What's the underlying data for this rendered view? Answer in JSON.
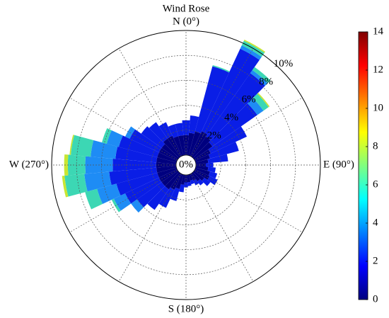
{
  "chart_data": {
    "type": "windrose",
    "title": "Wind Rose",
    "direction_labels": [
      "N (0°)",
      "E (90°)",
      "S (180°)",
      "W (270°)"
    ],
    "x": [
      0,
      10,
      20,
      30,
      40,
      50,
      60,
      70,
      80,
      90,
      100,
      110,
      120,
      130,
      140,
      150,
      160,
      170,
      180,
      190,
      200,
      210,
      220,
      230,
      240,
      250,
      260,
      270,
      280,
      290,
      300,
      310,
      320,
      330,
      340,
      350
    ],
    "series": [
      {
        "color": "#00007f",
        "values": [
          1.6,
          1.8,
          2.0,
          2.2,
          2.0,
          1.8,
          1.4,
          1.2,
          1.0,
          0.8,
          1.0,
          1.2,
          1.3,
          1.0,
          0.8,
          0.6,
          0.5,
          0.6,
          0.6,
          0.8,
          1.2,
          1.4,
          1.6,
          1.6,
          1.6,
          1.6,
          1.6,
          1.6,
          1.6,
          1.6,
          1.6,
          1.6,
          1.8,
          1.8,
          1.6,
          1.6
        ]
      },
      {
        "color": "#0a1ee6",
        "values": [
          1.2,
          1.4,
          5.4,
          7.3,
          6.2,
          4.4,
          3.2,
          2.4,
          1.6,
          0.6,
          0.6,
          0.6,
          0.7,
          0.6,
          0.4,
          0.4,
          0.3,
          0.3,
          0.4,
          0.6,
          1.0,
          1.6,
          2.0,
          2.4,
          3.0,
          3.4,
          3.8,
          3.5,
          3.3,
          3.2,
          2.6,
          2.0,
          1.6,
          1.2,
          1.0,
          1.0
        ]
      },
      {
        "color": "#1e8cf5",
        "values": [
          0,
          0,
          0,
          0.3,
          0.3,
          0.6,
          0,
          0,
          0,
          0,
          0,
          0,
          0,
          0,
          0,
          0,
          0,
          0,
          0,
          0,
          0,
          0,
          0,
          0.6,
          1.0,
          1.6,
          2.0,
          2.2,
          2.0,
          1.0,
          0.4,
          0,
          0,
          0,
          0,
          0
        ]
      },
      {
        "color": "#3cd7b4",
        "values": [
          0,
          0,
          0.1,
          0.4,
          0.3,
          0.5,
          0,
          0,
          0,
          0,
          0,
          0,
          0,
          0,
          0,
          0,
          0,
          0,
          0,
          0,
          0,
          0,
          0,
          0,
          0.2,
          1.0,
          1.6,
          1.4,
          1.6,
          0.4,
          0,
          0,
          0,
          0,
          0,
          0
        ]
      },
      {
        "color": "#c8e632",
        "values": [
          0,
          0,
          0,
          0.1,
          0,
          0.1,
          0,
          0,
          0,
          0,
          0,
          0,
          0,
          0,
          0,
          0,
          0,
          0,
          0,
          0,
          0,
          0,
          0,
          0,
          0,
          0,
          0.2,
          0.3,
          0.1,
          0,
          0,
          0,
          0,
          0,
          0,
          0
        ]
      }
    ],
    "rlim": [
      0,
      10
    ],
    "rticks": [
      {
        "value": 0,
        "label": "0%"
      },
      {
        "value": 2,
        "label": "2%"
      },
      {
        "value": 4,
        "label": "4%"
      },
      {
        "value": 6,
        "label": "6%"
      },
      {
        "value": 8,
        "label": "8%"
      },
      {
        "value": 10,
        "label": "10%"
      }
    ],
    "colorbar": {
      "lim": [
        0,
        14
      ],
      "ticks": [
        0,
        2,
        4,
        6,
        8,
        10,
        12,
        14
      ]
    }
  }
}
